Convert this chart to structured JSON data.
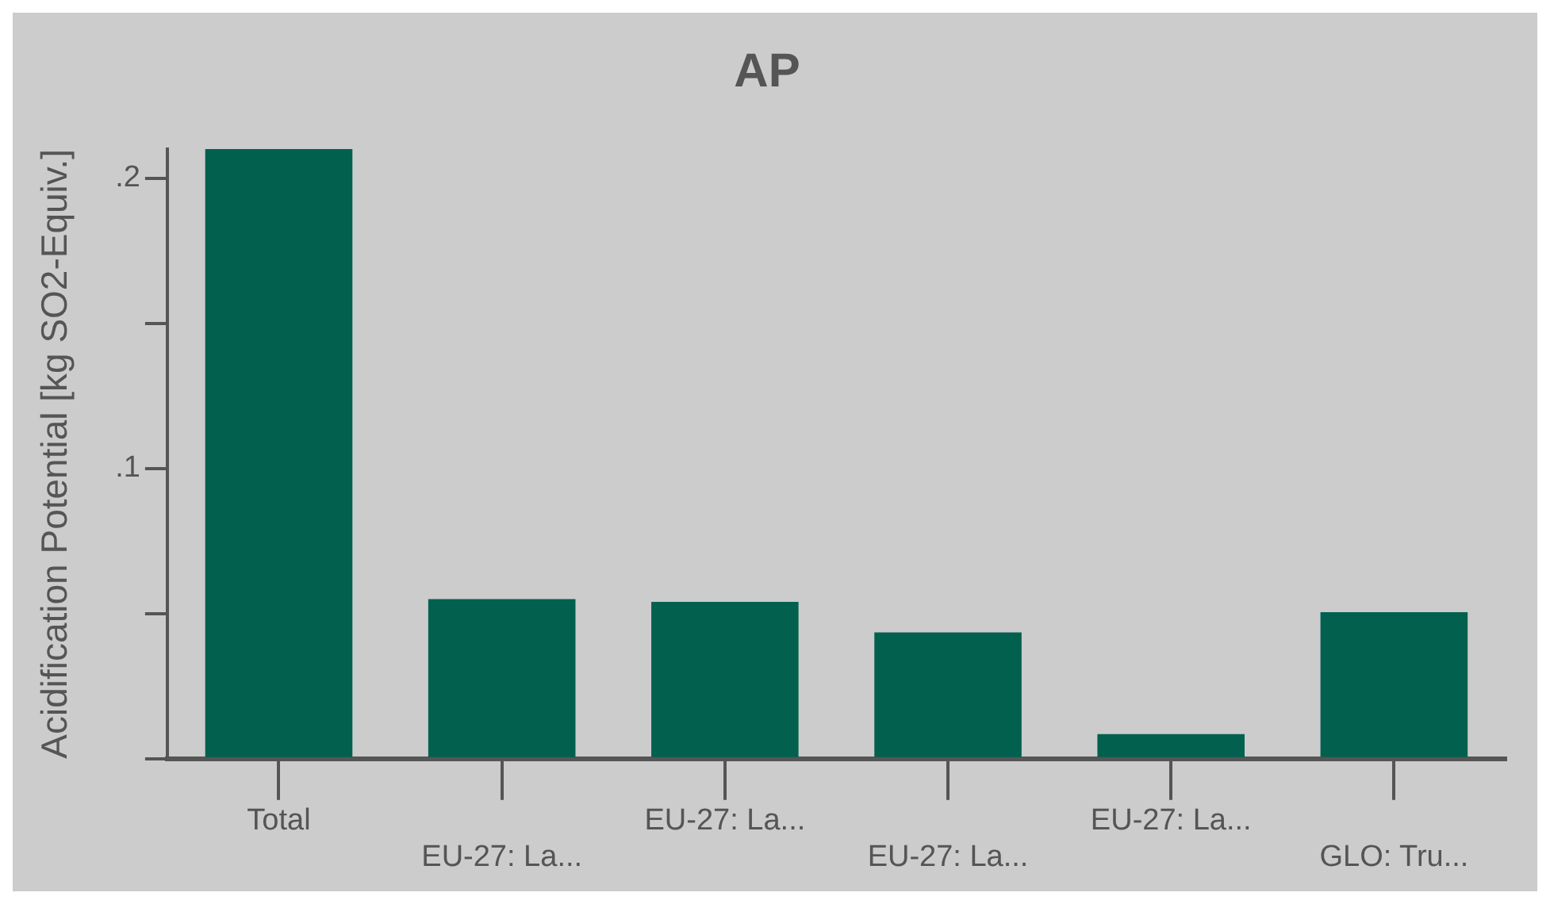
{
  "chart_data": {
    "type": "bar",
    "title": "AP",
    "ylabel": "Acidification Potential [kg SO2-Equiv.]",
    "categories": [
      "Total",
      "EU-27: La...",
      "EU-27: La...",
      "EU-27: La...",
      "EU-27: La...",
      "GLO: Tru..."
    ],
    "values": [
      0.21,
      0.055,
      0.054,
      0.0435,
      0.0085,
      0.0505
    ],
    "color": "#02604f",
    "ylim": [
      0,
      0.21
    ],
    "yticks": [
      {
        "value": 0,
        "label": null
      },
      {
        "value": 0.05,
        "label": null
      },
      {
        "value": 0.1,
        "label": ".1"
      },
      {
        "value": 0.15,
        "label": null
      },
      {
        "value": 0.2,
        "label": ".2"
      }
    ],
    "legend": false
  }
}
